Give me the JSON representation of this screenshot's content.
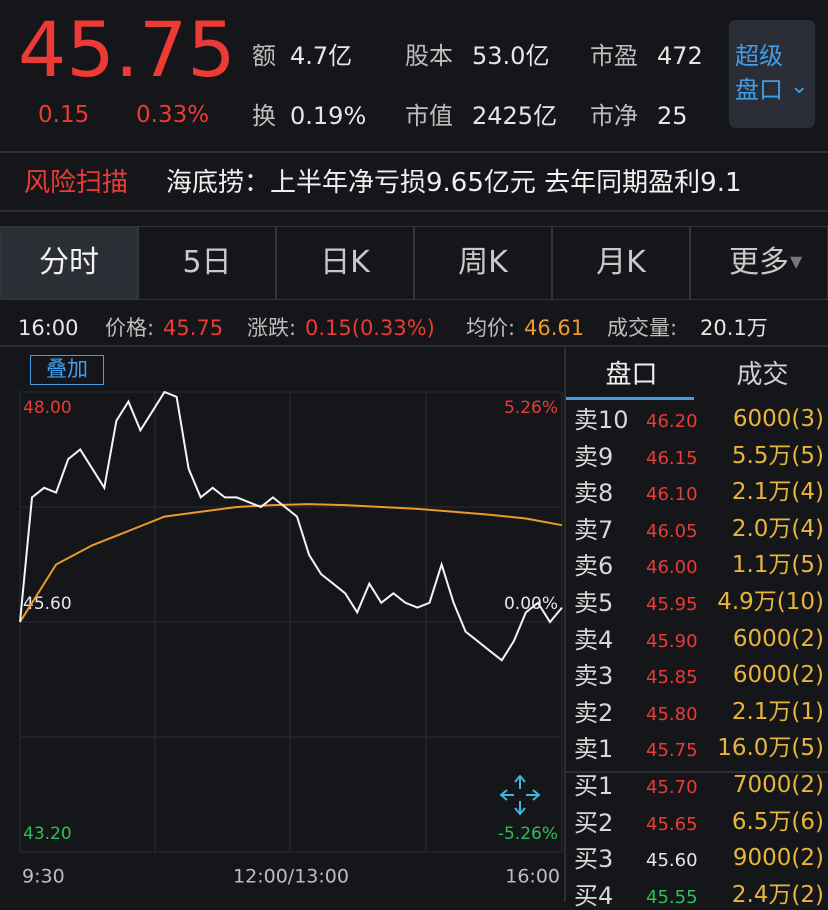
{
  "quote": {
    "price": "45.75",
    "change": "0.15",
    "change_pct": "0.33%",
    "stats": [
      {
        "label": "额",
        "value": "4.7亿"
      },
      {
        "label": "股本",
        "value": "53.0亿"
      },
      {
        "label": "市盈",
        "value": "472"
      },
      {
        "label": "换",
        "value": "0.19%"
      },
      {
        "label": "市值",
        "value": "2425亿"
      },
      {
        "label": "市净",
        "value": "25"
      }
    ],
    "super_button": [
      "超级",
      "盘口"
    ]
  },
  "risk": {
    "label": "风险扫描",
    "text": "海底捞：上半年净亏损9.65亿元 去年同期盈利9.1"
  },
  "tabs": [
    "分时",
    "5日",
    "日K",
    "周K",
    "月K",
    "更多"
  ],
  "info": {
    "time": "16:00",
    "price_label": "价格:",
    "price": "45.75",
    "change_label": "涨跌:",
    "change": "0.15(0.33%)",
    "avg_label": "均价:",
    "avg": "46.61",
    "volume_label": "成交量:",
    "volume": "20.1万"
  },
  "chart": {
    "overlay_button": "叠加",
    "y_labels": [
      {
        "value": 48.0,
        "label": "48.00"
      },
      {
        "value": 45.6,
        "label": "45.60"
      },
      {
        "value": 43.2,
        "label": "43.20"
      }
    ],
    "pct_labels": [
      "5.26%",
      "0.00%",
      "-5.26%"
    ],
    "x_labels": [
      "9:30",
      "12:00/13:00",
      "16:00"
    ],
    "price": [
      45.6,
      46.9,
      47.0,
      46.95,
      47.3,
      47.4,
      47.2,
      47.0,
      47.7,
      47.9,
      47.6,
      47.8,
      48.0,
      47.95,
      47.2,
      46.9,
      47.0,
      46.9,
      46.9,
      46.85,
      46.8,
      46.9,
      46.8,
      46.7,
      46.3,
      46.1,
      46.0,
      45.9,
      45.7,
      46.0,
      45.8,
      45.9,
      45.8,
      45.75,
      45.8,
      46.2,
      45.8,
      45.5,
      45.4,
      45.3,
      45.2,
      45.4,
      45.7,
      45.8,
      45.6,
      45.75
    ],
    "avg": [
      45.6,
      46.2,
      46.4,
      46.55,
      46.7,
      46.75,
      46.8,
      46.82,
      46.83,
      46.82,
      46.8,
      46.78,
      46.75,
      46.72,
      46.68,
      46.61
    ]
  },
  "order_book": {
    "tabs": [
      "盘口",
      "成交"
    ],
    "rows": [
      {
        "side": "卖10",
        "price": "46.20",
        "volume": "6000(3)"
      },
      {
        "side": "卖9",
        "price": "46.15",
        "volume": "5.5万(5)"
      },
      {
        "side": "卖8",
        "price": "46.10",
        "volume": "2.1万(4)"
      },
      {
        "side": "卖7",
        "price": "46.05",
        "volume": "2.0万(4)"
      },
      {
        "side": "卖6",
        "price": "46.00",
        "volume": "1.1万(5)"
      },
      {
        "side": "卖5",
        "price": "45.95",
        "volume": "4.9万(10)"
      },
      {
        "side": "卖4",
        "price": "45.90",
        "volume": "6000(2)"
      },
      {
        "side": "卖3",
        "price": "45.85",
        "volume": "6000(2)"
      },
      {
        "side": "卖2",
        "price": "45.80",
        "volume": "2.1万(1)"
      },
      {
        "side": "卖1",
        "price": "45.75",
        "volume": "16.0万(5)"
      },
      {
        "side": "买1",
        "price": "45.70",
        "volume": "7000(2)"
      },
      {
        "side": "买2",
        "price": "45.65",
        "volume": "6.5万(6)"
      },
      {
        "side": "买3",
        "price": "45.60",
        "volume": "9000(2)"
      },
      {
        "side": "买4",
        "price": "45.55",
        "volume": "2.4万(2)"
      }
    ]
  }
}
